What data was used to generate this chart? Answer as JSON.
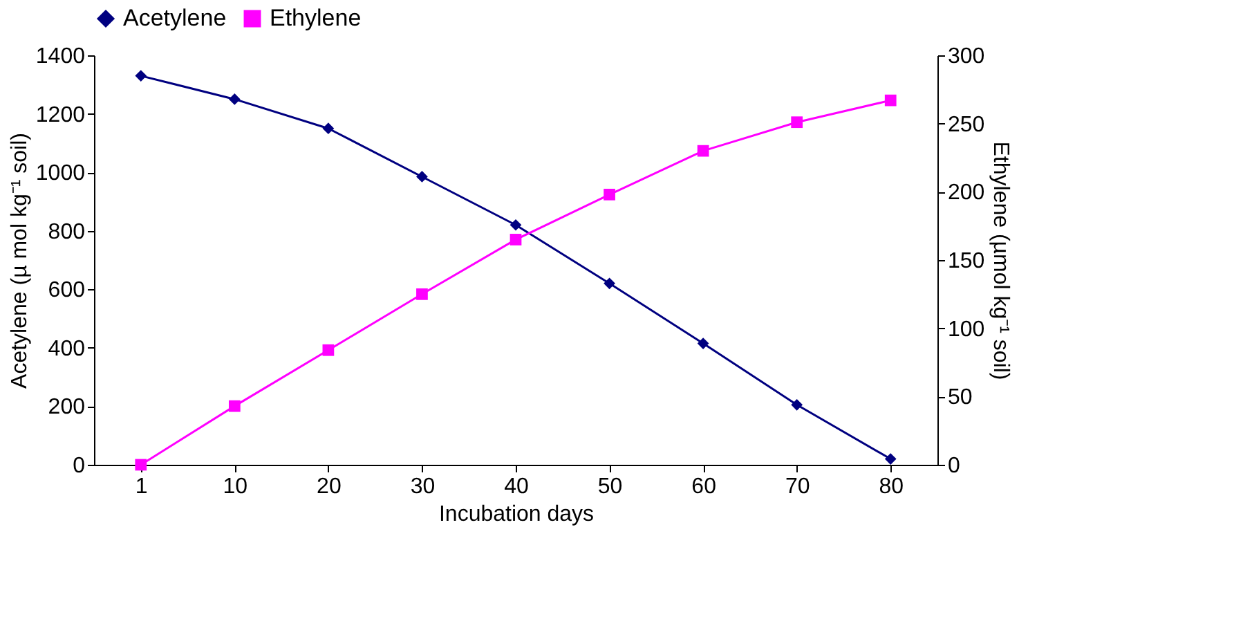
{
  "chart_data": {
    "type": "line",
    "xlabel": "Incubation days",
    "ylabel": "Acetylene (µ mol kg⁻¹ soil)",
    "y2label": "Ethylene (µmol kg⁻¹ soil)",
    "categories": [
      "1",
      "10",
      "20",
      "30",
      "40",
      "50",
      "60",
      "70",
      "80"
    ],
    "series": [
      {
        "name": "Acetylene",
        "color": "#000080",
        "marker": "diamond",
        "values": [
          1330,
          1250,
          1150,
          985,
          820,
          620,
          415,
          205,
          20
        ]
      },
      {
        "name": "Ethylene",
        "color": "#ff00ff",
        "marker": "square",
        "axis": "y2",
        "values": [
          0,
          43,
          84,
          125,
          165,
          198,
          230,
          251,
          267
        ]
      }
    ],
    "ylim": [
      0,
      1400
    ],
    "yticks": [
      0,
      200,
      400,
      600,
      800,
      1000,
      1200,
      1400
    ],
    "y2lim": [
      0,
      300
    ],
    "y2ticks": [
      0,
      50,
      100,
      150,
      200,
      250,
      300
    ],
    "grid": false,
    "legend": "top",
    "line_style": "solid"
  }
}
